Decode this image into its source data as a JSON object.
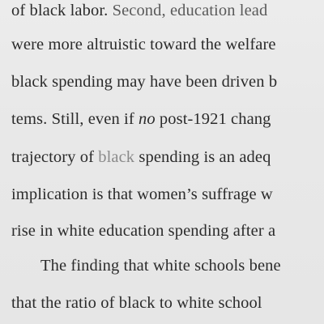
{
  "document": {
    "lines": [
      {
        "a": "of black labor. ",
        "b": "Second, ",
        "c": "education lead"
      },
      {
        "a": "were more altruistic toward the welfare"
      },
      {
        "a": "black spending may have been driven b"
      },
      {
        "a": "tems. Still, even if ",
        "em": "no",
        "b": " post-1921 chang"
      },
      {
        "a": "trajectory of ",
        "b": "black",
        "c": " spending is an adeq"
      },
      {
        "a": "implication is that women’s suffrage w"
      },
      {
        "a": "rise in white education spending after a"
      },
      {
        "a": "The finding that white schools bene"
      },
      {
        "a": "that the ratio of black to white school"
      }
    ]
  }
}
